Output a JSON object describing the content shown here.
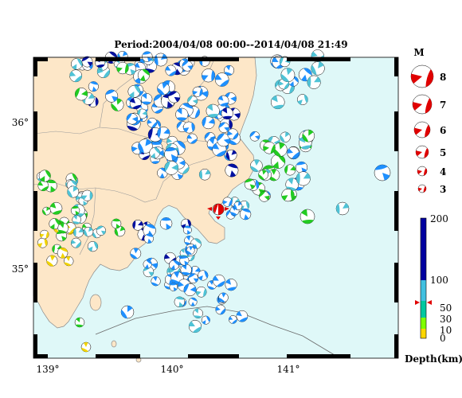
{
  "title": "Period:2004/04/08 00:00--2014/04/08 21:49",
  "map": {
    "lon_labels": [
      "139°",
      "140°",
      "141°"
    ],
    "lat_labels": [
      "36°",
      "35°"
    ]
  },
  "magnitude_legend": {
    "title": "M",
    "items": [
      "8",
      "7",
      "6",
      "5",
      "4",
      "3"
    ]
  },
  "depth_scale": {
    "title": "Depth(km)",
    "ticks": [
      "200",
      "100",
      "50",
      "30",
      "10",
      "0"
    ],
    "colors": {
      "0-10": "#ffd700",
      "10-30": "#7fff00",
      "30-60": "#00e070",
      "60-100": "#40c0e0",
      "100-200": "#0000a0"
    },
    "marker_depth": 58
  },
  "colors": {
    "land": "#fde7c8",
    "sea": "#dff8f8",
    "coast": "#8a8a8a",
    "mainshock": "#e00000",
    "beach_blue": "#1e90ff",
    "beach_cyan": "#4fc3d6",
    "beach_green": "#22cc22",
    "beach_navy": "#0010a0",
    "beach_yellow": "#f2d400"
  }
}
